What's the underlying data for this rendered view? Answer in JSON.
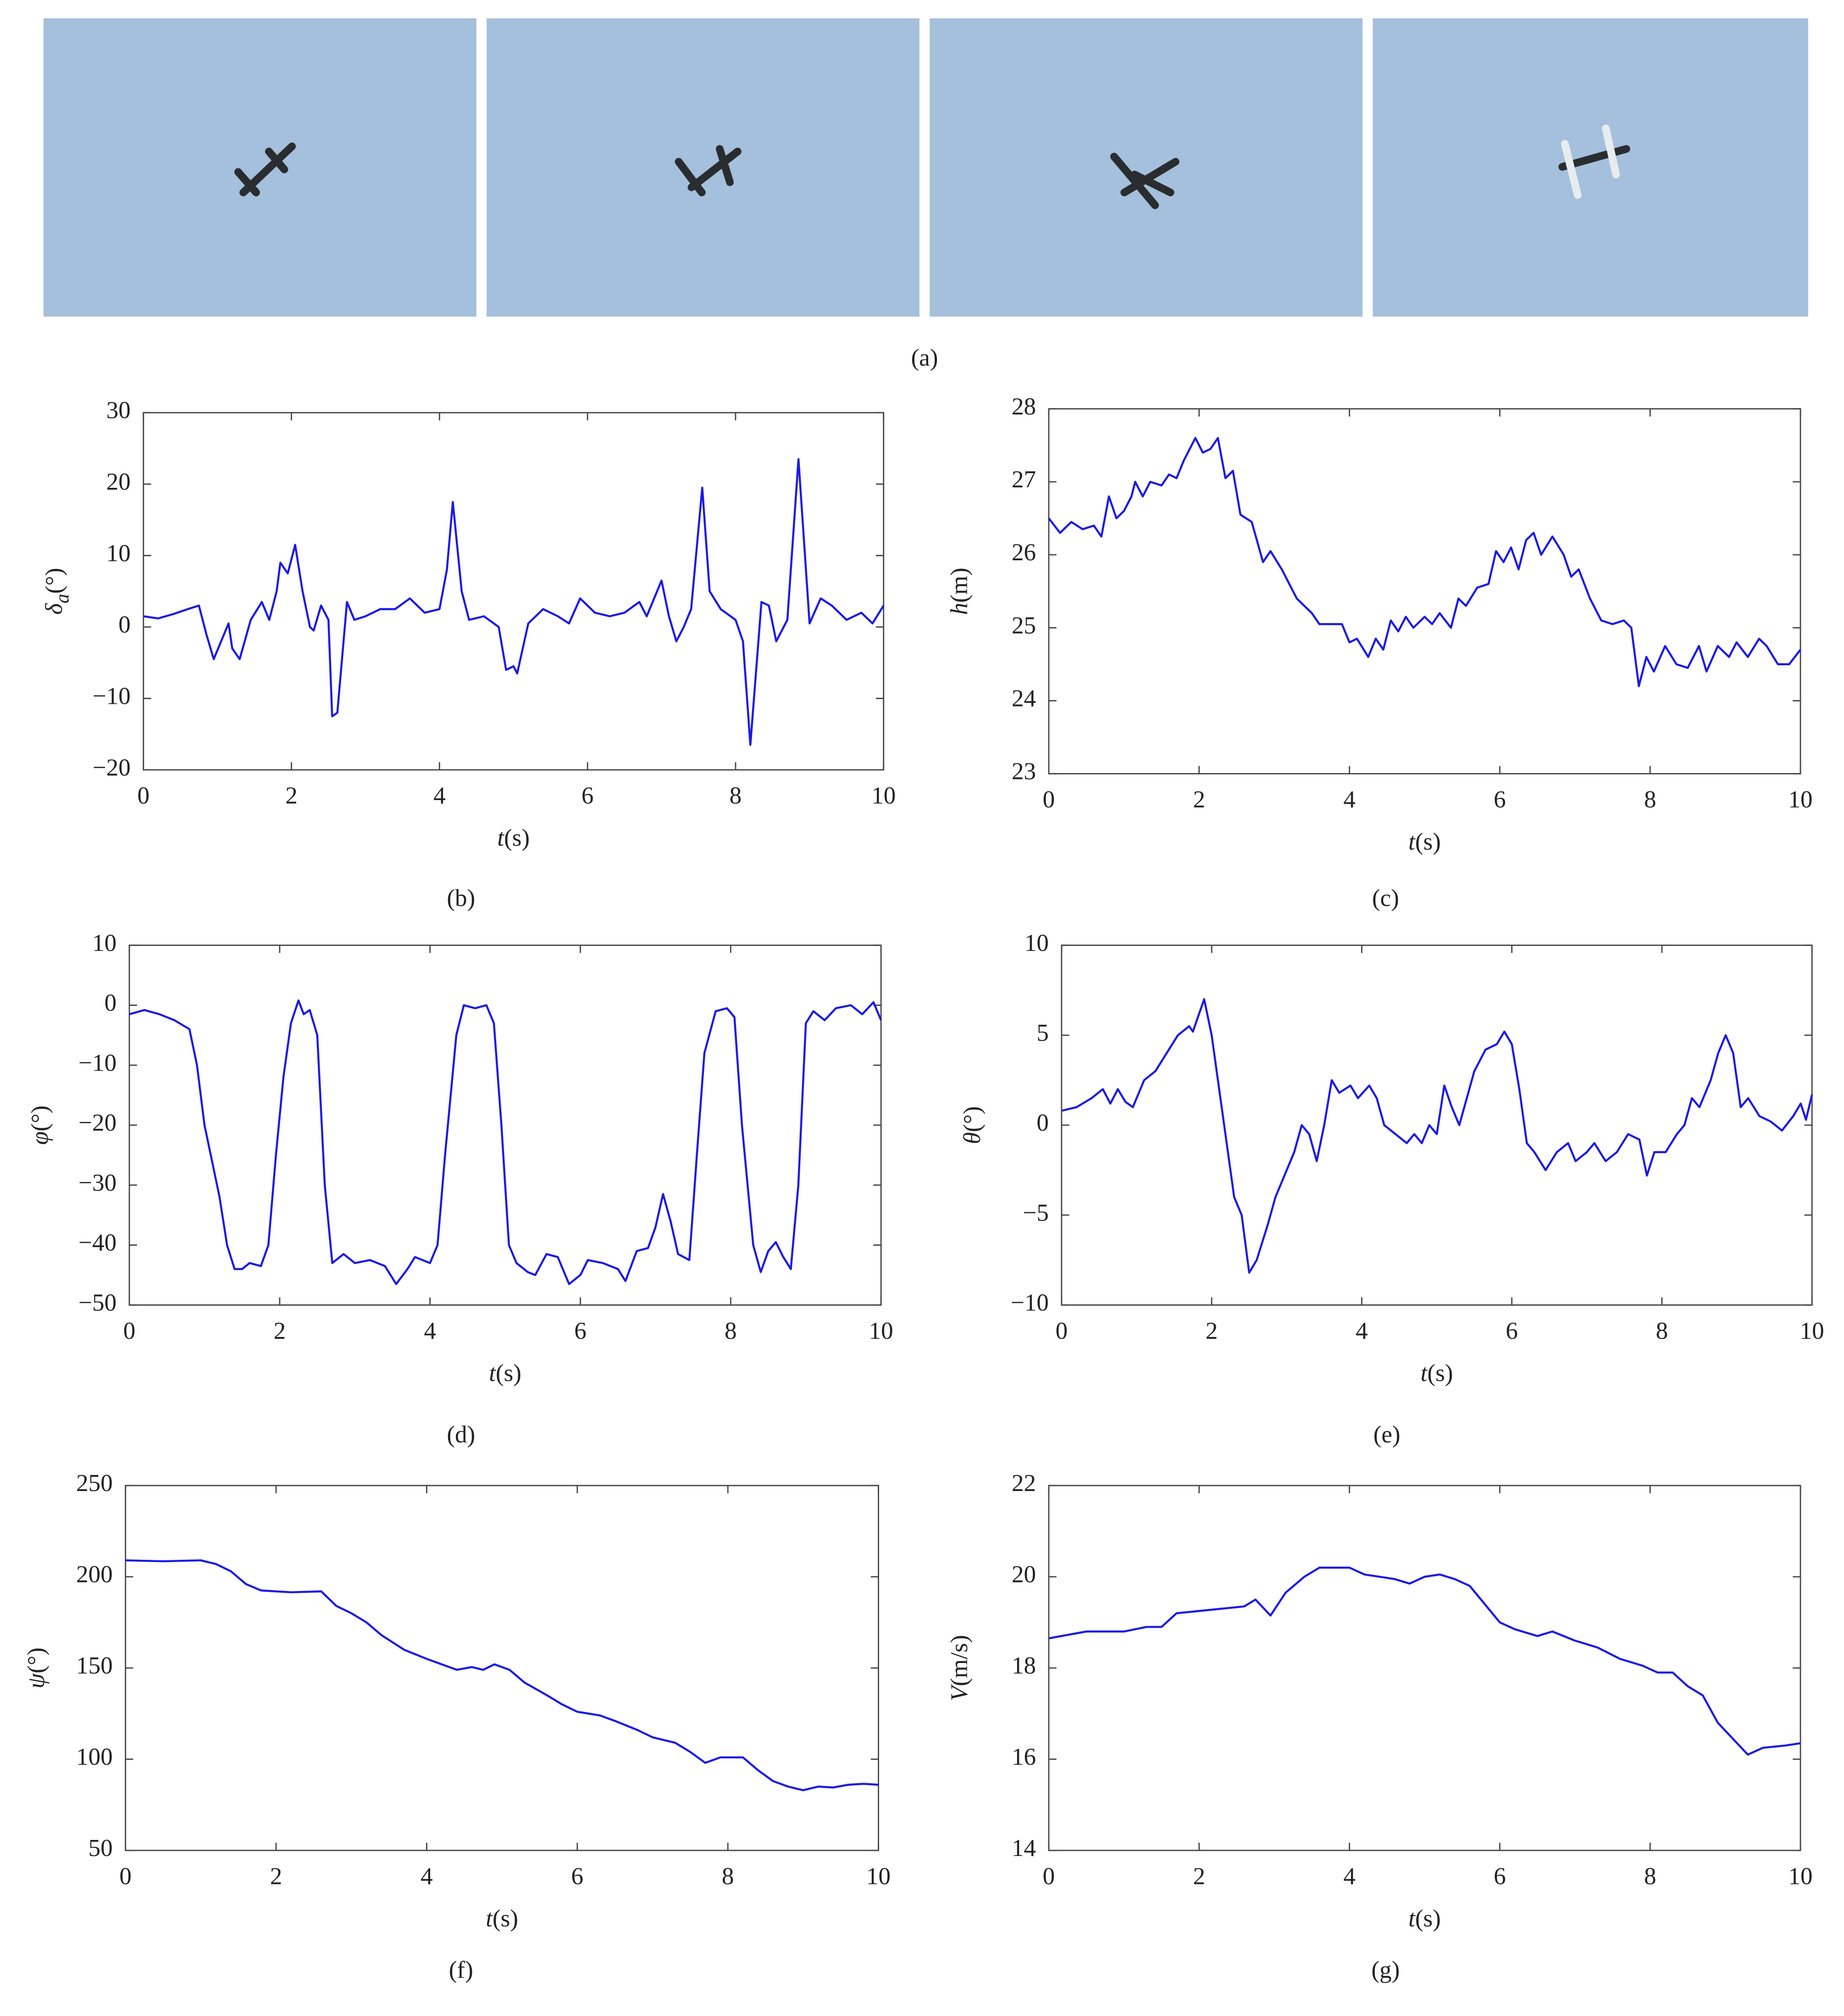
{
  "photo_caption": "(a)",
  "chart_data": [
    {
      "type": "line",
      "caption": "(b)",
      "color": "#1a1ae6",
      "xlabel": {
        "symbol": "t",
        "unit": "(s)"
      },
      "ylabel": {
        "symbol": "δ",
        "subscript": "a",
        "unit": "(°)"
      },
      "xlim": [
        0,
        10
      ],
      "xticks": [
        0,
        2,
        4,
        6,
        8,
        10
      ],
      "ylim": [
        -20,
        30
      ],
      "yticks": [
        {
          "value": -20,
          "label": "−20"
        },
        {
          "value": -10,
          "label": "−10"
        },
        0,
        10,
        20,
        30
      ],
      "x": [
        0,
        0.2,
        0.4,
        0.6,
        0.75,
        0.85,
        0.95,
        1.05,
        1.15,
        1.2,
        1.3,
        1.45,
        1.6,
        1.7,
        1.8,
        1.85,
        1.95,
        2.05,
        2.15,
        2.25,
        2.3,
        2.4,
        2.5,
        2.55,
        2.62,
        2.75,
        2.85,
        3.0,
        3.2,
        3.4,
        3.6,
        3.8,
        4.0,
        4.1,
        4.18,
        4.3,
        4.4,
        4.6,
        4.8,
        4.9,
        5.0,
        5.05,
        5.2,
        5.4,
        5.6,
        5.75,
        5.9,
        6.1,
        6.3,
        6.5,
        6.7,
        6.8,
        7.0,
        7.1,
        7.2,
        7.3,
        7.4,
        7.55,
        7.65,
        7.8,
        8.0,
        8.1,
        8.2,
        8.35,
        8.45,
        8.55,
        8.7,
        8.85,
        9.0,
        9.15,
        9.3,
        9.5,
        9.7,
        9.85,
        10
      ],
      "values": [
        1.5,
        1.2,
        1.8,
        2.5,
        3,
        -1,
        -4.5,
        -2,
        0.5,
        -3,
        -4.5,
        1,
        3.5,
        1,
        5,
        9,
        7.5,
        11.5,
        5,
        0,
        -0.5,
        3,
        1,
        -12.5,
        -12,
        3.5,
        1,
        1.5,
        2.5,
        2.5,
        4,
        2,
        2.5,
        8,
        17.5,
        5,
        1,
        1.5,
        0,
        -6,
        -5.5,
        -6.5,
        0.5,
        2.5,
        1.5,
        0.5,
        4,
        2,
        1.5,
        2,
        3.5,
        1.5,
        6.5,
        1.5,
        -2,
        0,
        2.5,
        19.5,
        5,
        2.5,
        1,
        -2,
        -16.5,
        3.5,
        3,
        -2,
        1,
        23.5,
        0.5,
        4,
        3,
        1,
        2,
        0.5,
        3
      ]
    },
    {
      "type": "line",
      "caption": "(c)",
      "color": "#1a1ae6",
      "xlabel": {
        "symbol": "t",
        "unit": "(s)"
      },
      "ylabel": {
        "symbol": "h",
        "unit": "(m)"
      },
      "xlim": [
        0,
        10
      ],
      "xticks": [
        0,
        2,
        4,
        6,
        8,
        10
      ],
      "ylim": [
        23,
        28
      ],
      "yticks": [
        23,
        24,
        25,
        26,
        27,
        28
      ],
      "x": [
        0,
        0.15,
        0.3,
        0.45,
        0.6,
        0.7,
        0.8,
        0.9,
        1.0,
        1.1,
        1.15,
        1.25,
        1.35,
        1.5,
        1.6,
        1.7,
        1.8,
        1.95,
        2.05,
        2.15,
        2.25,
        2.35,
        2.45,
        2.55,
        2.7,
        2.85,
        2.95,
        3.1,
        3.3,
        3.5,
        3.6,
        3.75,
        3.9,
        4.0,
        4.1,
        4.25,
        4.35,
        4.45,
        4.55,
        4.65,
        4.75,
        4.85,
        5.0,
        5.1,
        5.2,
        5.35,
        5.45,
        5.55,
        5.7,
        5.85,
        5.95,
        6.05,
        6.15,
        6.25,
        6.35,
        6.45,
        6.55,
        6.7,
        6.85,
        6.95,
        7.05,
        7.2,
        7.35,
        7.5,
        7.65,
        7.75,
        7.85,
        7.95,
        8.05,
        8.2,
        8.35,
        8.5,
        8.65,
        8.75,
        8.9,
        9.05,
        9.15,
        9.3,
        9.45,
        9.55,
        9.7,
        9.85,
        10
      ],
      "values": [
        26.5,
        26.3,
        26.45,
        26.35,
        26.4,
        26.25,
        26.8,
        26.5,
        26.6,
        26.8,
        27.0,
        26.8,
        27.0,
        26.95,
        27.1,
        27.05,
        27.3,
        27.6,
        27.4,
        27.45,
        27.6,
        27.05,
        27.15,
        26.55,
        26.45,
        25.9,
        26.05,
        25.8,
        25.4,
        25.2,
        25.05,
        25.05,
        25.05,
        24.8,
        24.85,
        24.6,
        24.85,
        24.7,
        25.1,
        24.95,
        25.15,
        25.0,
        25.15,
        25.05,
        25.2,
        25.0,
        25.4,
        25.3,
        25.55,
        25.6,
        26.05,
        25.9,
        26.1,
        25.8,
        26.2,
        26.3,
        26.0,
        26.25,
        26.0,
        25.7,
        25.8,
        25.4,
        25.1,
        25.05,
        25.1,
        25.0,
        24.2,
        24.6,
        24.4,
        24.75,
        24.5,
        24.45,
        24.75,
        24.4,
        24.75,
        24.6,
        24.8,
        24.6,
        24.85,
        24.75,
        24.5,
        24.5,
        24.7
      ]
    },
    {
      "type": "line",
      "caption": "(d)",
      "color": "#1a1ae6",
      "xlabel": {
        "symbol": "t",
        "unit": "(s)"
      },
      "ylabel": {
        "symbol": "φ",
        "unit": "(°)"
      },
      "xlim": [
        0,
        10
      ],
      "xticks": [
        0,
        2,
        4,
        6,
        8,
        10
      ],
      "ylim": [
        -50,
        10
      ],
      "yticks": [
        {
          "value": -50,
          "label": "−50"
        },
        {
          "value": -40,
          "label": "−40"
        },
        {
          "value": -30,
          "label": "−30"
        },
        {
          "value": -20,
          "label": "−20"
        },
        {
          "value": -10,
          "label": "−10"
        },
        0,
        10
      ],
      "x": [
        0,
        0.2,
        0.4,
        0.6,
        0.8,
        0.9,
        1.0,
        1.1,
        1.2,
        1.3,
        1.4,
        1.5,
        1.6,
        1.75,
        1.85,
        1.95,
        2.05,
        2.15,
        2.25,
        2.32,
        2.4,
        2.5,
        2.6,
        2.7,
        2.85,
        3.0,
        3.2,
        3.4,
        3.55,
        3.7,
        3.8,
        4.0,
        4.1,
        4.2,
        4.35,
        4.45,
        4.6,
        4.75,
        4.85,
        4.95,
        5.05,
        5.15,
        5.3,
        5.4,
        5.55,
        5.7,
        5.85,
        6.0,
        6.1,
        6.3,
        6.5,
        6.6,
        6.75,
        6.9,
        7.0,
        7.1,
        7.2,
        7.3,
        7.45,
        7.55,
        7.65,
        7.8,
        7.95,
        8.05,
        8.15,
        8.3,
        8.4,
        8.5,
        8.6,
        8.7,
        8.8,
        8.9,
        9.0,
        9.1,
        9.25,
        9.4,
        9.6,
        9.75,
        9.9,
        10
      ],
      "values": [
        -1.5,
        -0.8,
        -1.5,
        -2.5,
        -4,
        -10,
        -20,
        -26,
        -32,
        -40,
        -44,
        -44,
        -43,
        -43.5,
        -40,
        -25,
        -12,
        -3,
        0.8,
        -1.5,
        -0.8,
        -5,
        -30,
        -43,
        -41.5,
        -43,
        -42.5,
        -43.5,
        -46.5,
        -44,
        -42,
        -43,
        -40,
        -25,
        -5,
        0,
        -0.5,
        0,
        -3,
        -20,
        -40,
        -43,
        -44.5,
        -45,
        -41.5,
        -42,
        -46.5,
        -45,
        -42.5,
        -43,
        -44,
        -46,
        -41,
        -40.5,
        -37,
        -31.5,
        -36,
        -41.5,
        -42.5,
        -25,
        -8,
        -1,
        -0.5,
        -2,
        -20,
        -40,
        -44.5,
        -41,
        -39.5,
        -42,
        -44,
        -30,
        -3,
        -1,
        -2.5,
        -0.5,
        0,
        -1.5,
        0.5,
        -2.5
      ]
    },
    {
      "type": "line",
      "caption": "(e)",
      "color": "#1a1ae6",
      "xlabel": {
        "symbol": "t",
        "unit": "(s)"
      },
      "ylabel": {
        "symbol": "θ",
        "unit": "(°)"
      },
      "xlim": [
        0,
        10
      ],
      "xticks": [
        0,
        2,
        4,
        6,
        8,
        10
      ],
      "ylim": [
        -10,
        10
      ],
      "yticks": [
        {
          "value": -10,
          "label": "−10"
        },
        {
          "value": -5,
          "label": "−5"
        },
        0,
        5,
        10
      ],
      "x": [
        0,
        0.2,
        0.4,
        0.55,
        0.65,
        0.75,
        0.85,
        0.95,
        1.1,
        1.25,
        1.4,
        1.55,
        1.7,
        1.75,
        1.9,
        2.0,
        2.1,
        2.2,
        2.3,
        2.4,
        2.5,
        2.6,
        2.75,
        2.85,
        2.95,
        3.1,
        3.2,
        3.3,
        3.4,
        3.5,
        3.6,
        3.7,
        3.85,
        3.95,
        4.1,
        4.2,
        4.3,
        4.45,
        4.6,
        4.7,
        4.8,
        4.9,
        5.0,
        5.1,
        5.2,
        5.3,
        5.4,
        5.5,
        5.65,
        5.8,
        5.9,
        6.0,
        6.1,
        6.2,
        6.3,
        6.45,
        6.6,
        6.75,
        6.85,
        7.0,
        7.1,
        7.25,
        7.4,
        7.55,
        7.7,
        7.8,
        7.9,
        8.05,
        8.2,
        8.3,
        8.4,
        8.5,
        8.65,
        8.75,
        8.85,
        8.95,
        9.05,
        9.15,
        9.3,
        9.45,
        9.6,
        9.75,
        9.85,
        9.92,
        10
      ],
      "values": [
        0.8,
        1,
        1.5,
        2,
        1.2,
        2,
        1.3,
        1,
        2.5,
        3,
        4,
        5,
        5.5,
        5.2,
        7,
        5,
        2,
        -1,
        -4,
        -5,
        -8.2,
        -7.5,
        -5.5,
        -4,
        -3,
        -1.5,
        0,
        -0.5,
        -2,
        0,
        2.5,
        1.8,
        2.2,
        1.5,
        2.2,
        1.5,
        0,
        -0.5,
        -1,
        -0.5,
        -1,
        0,
        -0.5,
        2.2,
        1,
        0,
        1.5,
        3,
        4.2,
        4.5,
        5.2,
        4.5,
        2,
        -1,
        -1.5,
        -2.5,
        -1.5,
        -1,
        -2,
        -1.5,
        -1,
        -2,
        -1.5,
        -0.5,
        -0.8,
        -2.8,
        -1.5,
        -1.5,
        -0.5,
        0,
        1.5,
        1,
        2.5,
        4,
        5,
        4,
        1,
        1.5,
        0.5,
        0.2,
        -0.3,
        0.5,
        1.2,
        0.3,
        1.7
      ]
    },
    {
      "type": "line",
      "caption": "(f)",
      "color": "#1a1ae6",
      "xlabel": {
        "symbol": "t",
        "unit": "(s)"
      },
      "ylabel": {
        "symbol": "ψ",
        "unit": "(°)"
      },
      "xlim": [
        0,
        10
      ],
      "xticks": [
        0,
        2,
        4,
        6,
        8,
        10
      ],
      "ylim": [
        50,
        250
      ],
      "yticks": [
        50,
        100,
        150,
        200,
        250
      ],
      "x": [
        0,
        0.5,
        1.0,
        1.2,
        1.4,
        1.6,
        1.8,
        2.0,
        2.2,
        2.6,
        2.8,
        3.0,
        3.2,
        3.4,
        3.7,
        4.0,
        4.2,
        4.4,
        4.6,
        4.75,
        4.9,
        5.1,
        5.3,
        5.6,
        5.8,
        6.0,
        6.3,
        6.5,
        6.8,
        7.0,
        7.3,
        7.5,
        7.7,
        7.9,
        8.2,
        8.4,
        8.6,
        8.8,
        9.0,
        9.2,
        9.4,
        9.6,
        9.8,
        10
      ],
      "values": [
        209,
        208.5,
        209,
        207,
        203,
        196,
        192.5,
        192,
        191.5,
        192,
        184,
        180,
        175,
        168,
        160,
        155,
        152,
        149,
        150.5,
        149,
        152,
        149,
        142,
        135,
        130,
        126,
        124,
        121,
        116,
        112,
        109,
        104,
        98,
        101,
        101,
        94,
        88,
        85,
        83,
        85,
        84.5,
        86,
        86.5,
        86
      ]
    },
    {
      "type": "line",
      "caption": "(g)",
      "color": "#1a1ae6",
      "xlabel": {
        "symbol": "t",
        "unit": "(s)"
      },
      "ylabel": {
        "symbol": "V",
        "unit": "(m/s)"
      },
      "xlim": [
        0,
        10
      ],
      "xticks": [
        0,
        2,
        4,
        6,
        8,
        10
      ],
      "ylim": [
        14,
        22
      ],
      "yticks": [
        14,
        16,
        18,
        20,
        22
      ],
      "x": [
        0,
        0.5,
        1.0,
        1.3,
        1.5,
        1.7,
        2.0,
        2.3,
        2.6,
        2.75,
        2.95,
        3.15,
        3.4,
        3.6,
        4.0,
        4.2,
        4.6,
        4.8,
        5.0,
        5.2,
        5.4,
        5.6,
        5.8,
        6.0,
        6.2,
        6.5,
        6.7,
        7.0,
        7.3,
        7.6,
        7.9,
        8.1,
        8.3,
        8.5,
        8.7,
        8.9,
        9.1,
        9.3,
        9.5,
        9.8,
        10
      ],
      "values": [
        18.65,
        18.8,
        18.8,
        18.9,
        18.9,
        19.2,
        19.25,
        19.3,
        19.35,
        19.5,
        19.15,
        19.65,
        20.0,
        20.2,
        20.2,
        20.05,
        19.95,
        19.85,
        20.0,
        20.05,
        19.95,
        19.8,
        19.4,
        19.0,
        18.85,
        18.7,
        18.8,
        18.6,
        18.45,
        18.2,
        18.05,
        17.9,
        17.9,
        17.6,
        17.4,
        16.8,
        16.45,
        16.1,
        16.25,
        16.3,
        16.35
      ]
    }
  ]
}
